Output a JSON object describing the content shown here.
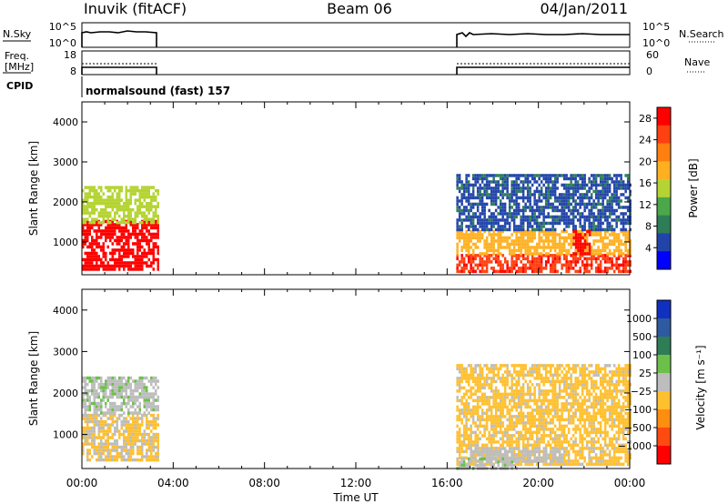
{
  "header": {
    "station": "Inuvik (fitACF)",
    "beam": "Beam 06",
    "date": "04/Jan/2011"
  },
  "top_panels": {
    "nsky_label": "N.Sky",
    "nsky_ticks": [
      "10^5",
      "10^0"
    ],
    "nsearch_label": "N.Search",
    "nsearch_ticks": [
      "10^5",
      "10^0"
    ],
    "freq_label_1": "Freq.",
    "freq_label_2": "[MHz]",
    "freq_ticks": [
      "18",
      "8"
    ],
    "nave_label": "Nave",
    "nave_ticks": [
      "60",
      "0"
    ],
    "cpid_label": "CPID",
    "cpid_text": "normalsound (fast) 157"
  },
  "colors": {
    "power_scale": [
      "#0000ff",
      "#2244aa",
      "#2e7d57",
      "#4ba84a",
      "#b5d433",
      "#ffb020",
      "#ff8010",
      "#ff4010",
      "#ff0000"
    ],
    "velocity_scale": [
      "#1030c0",
      "#2d5aa0",
      "#2e7d57",
      "#6cc04a",
      "#bdbdbd",
      "#ffc030",
      "#ff8d10",
      "#ff4a10",
      "#ff0000"
    ]
  },
  "chart_data": [
    {
      "type": "heatmap",
      "panel": "power",
      "ylabel": "Slant Range [km]",
      "xlabel": "Time UT",
      "x_ticks": [
        "00:00",
        "04:00",
        "08:00",
        "12:00",
        "16:00",
        "20:00",
        "00:00"
      ],
      "xlim_hours": [
        0,
        24
      ],
      "y_ticks": [
        "1000",
        "2000",
        "3000",
        "4000"
      ],
      "ylim": [
        180,
        4500
      ],
      "colorbar_label": "Power [dB]",
      "colorbar_ticks": [
        "4",
        "8",
        "12",
        "16",
        "20",
        "24",
        "28"
      ],
      "colorbar_range": [
        0,
        30
      ],
      "data_intervals_hours": [
        [
          0.0,
          3.3
        ],
        [
          16.4,
          24.0
        ]
      ],
      "regions": [
        {
          "t": [
            0.0,
            3.3
          ],
          "r": [
            300,
            1550
          ],
          "value": 29
        },
        {
          "t": [
            0.0,
            3.3
          ],
          "r": [
            1500,
            2400
          ],
          "value": 15
        },
        {
          "t": [
            16.4,
            24.0
          ],
          "r": [
            300,
            700
          ],
          "value": 26
        },
        {
          "t": [
            16.4,
            24.0
          ],
          "r": [
            700,
            1300
          ],
          "value": 18
        },
        {
          "t": [
            16.4,
            24.0
          ],
          "r": [
            1300,
            2700
          ],
          "value": 6
        },
        {
          "t": [
            21.5,
            22.2
          ],
          "r": [
            700,
            1300
          ],
          "value": 29
        }
      ]
    },
    {
      "type": "heatmap",
      "panel": "velocity",
      "ylabel": "Slant Range [km]",
      "xlabel": "Time UT",
      "x_ticks": [
        "00:00",
        "04:00",
        "08:00",
        "12:00",
        "16:00",
        "20:00",
        "00:00"
      ],
      "xlim_hours": [
        0,
        24
      ],
      "y_ticks": [
        "1000",
        "2000",
        "3000",
        "4000"
      ],
      "ylim": [
        180,
        4500
      ],
      "colorbar_label": "Velocity [m s⁻¹]",
      "colorbar_ticks": [
        "1000",
        "500",
        "100",
        "25",
        "−25",
        "−100",
        "−500",
        "−1000"
      ],
      "colorbar_range": [
        -1200,
        1200
      ],
      "regions": [
        {
          "t": [
            0.0,
            3.3
          ],
          "r": [
            400,
            1500
          ],
          "value": -150
        },
        {
          "t": [
            0.0,
            3.3
          ],
          "r": [
            1500,
            2400
          ],
          "value": 80
        },
        {
          "t": [
            16.4,
            24.0
          ],
          "r": [
            300,
            2700
          ],
          "value": -200
        },
        {
          "t": [
            17.0,
            21.0
          ],
          "r": [
            350,
            700
          ],
          "value": 0
        },
        {
          "t": [
            16.4,
            19.0
          ],
          "r": [
            200,
            450
          ],
          "value": 60
        }
      ]
    }
  ]
}
